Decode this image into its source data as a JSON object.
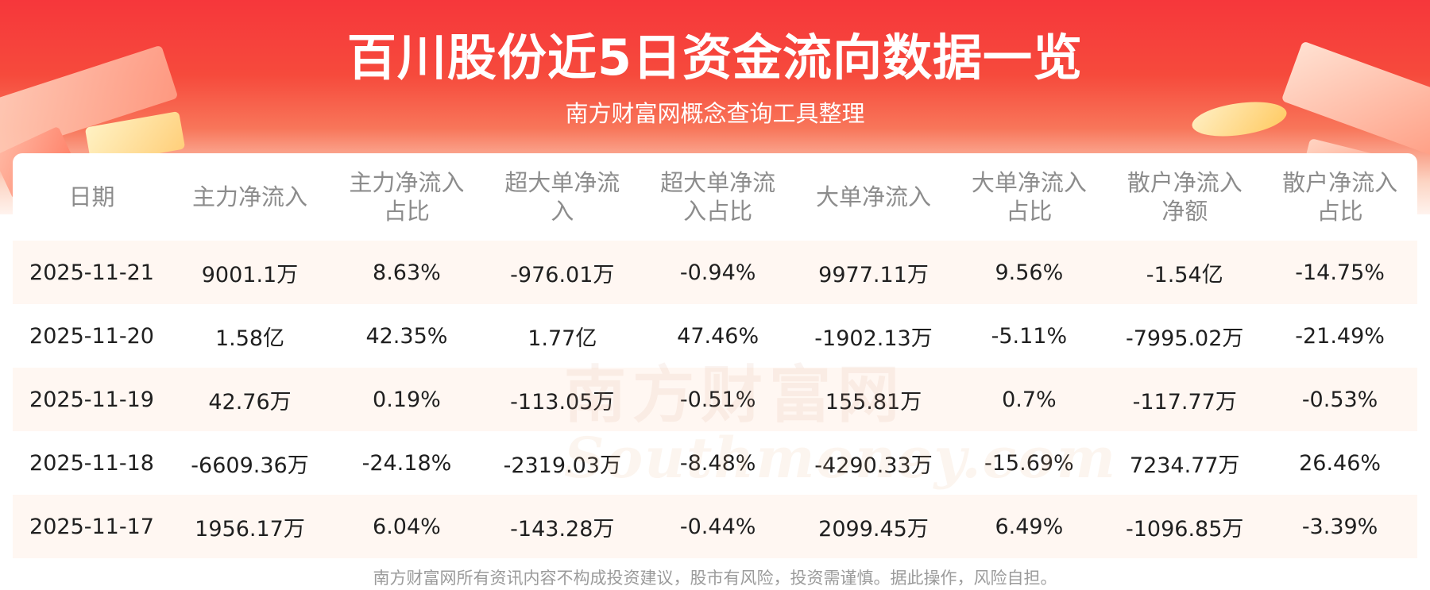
{
  "title": "百川股份近5日资金流向数据一览",
  "subtitle": "南方财富网概念查询工具整理",
  "watermark": {
    "cn": "南方财富网",
    "en": "Southmoney.com"
  },
  "table": {
    "headers": [
      [
        "日期"
      ],
      [
        "主力净流入"
      ],
      [
        "主力净流入",
        "占比"
      ],
      [
        "超大单净流",
        "入"
      ],
      [
        "超大单净流",
        "入占比"
      ],
      [
        "大单净流入"
      ],
      [
        "大单净流入",
        "占比"
      ],
      [
        "散户净流入",
        "净额"
      ],
      [
        "散户净流入",
        "占比"
      ]
    ],
    "rows": [
      [
        "2025-11-21",
        "9001.1万",
        "8.63%",
        "-976.01万",
        "-0.94%",
        "9977.11万",
        "9.56%",
        "-1.54亿",
        "-14.75%"
      ],
      [
        "2025-11-20",
        "1.58亿",
        "42.35%",
        "1.77亿",
        "47.46%",
        "-1902.13万",
        "-5.11%",
        "-7995.02万",
        "-21.49%"
      ],
      [
        "2025-11-19",
        "42.76万",
        "0.19%",
        "-113.05万",
        "-0.51%",
        "155.81万",
        "0.7%",
        "-117.77万",
        "-0.53%"
      ],
      [
        "2025-11-18",
        "-6609.36万",
        "-24.18%",
        "-2319.03万",
        "-8.48%",
        "-4290.33万",
        "-15.69%",
        "7234.77万",
        "26.46%"
      ],
      [
        "2025-11-17",
        "1956.17万",
        "6.04%",
        "-143.28万",
        "-0.44%",
        "2099.45万",
        "6.49%",
        "-1096.85万",
        "-3.39%"
      ]
    ]
  },
  "disclaimer": "南方财富网所有资讯内容不构成投资建议，股市有风险，投资需谨慎。据此操作，风险自担。"
}
